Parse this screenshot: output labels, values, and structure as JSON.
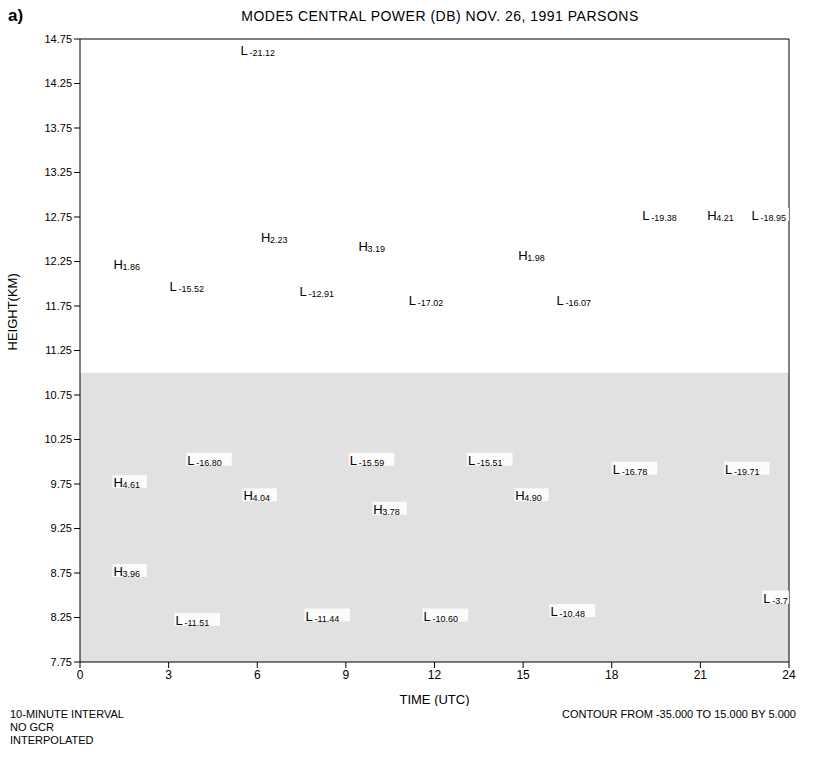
{
  "panel_label": "a)",
  "chart_data": {
    "type": "contour",
    "title": "MODE5 CENTRAL POWER (DB) NOV. 26, 1991 PARSONS",
    "x_label": "TIME (UTC)",
    "y_label": "HEIGHT(KM)",
    "xlim": [
      0,
      24
    ],
    "xticks": [
      0,
      3,
      6,
      9,
      12,
      15,
      18,
      21,
      24
    ],
    "ylim": [
      7.75,
      14.75
    ],
    "yticks": [
      7.75,
      8.25,
      8.75,
      9.25,
      9.75,
      10.25,
      10.75,
      11.25,
      11.75,
      12.25,
      12.75,
      13.25,
      13.75,
      14.25,
      14.75
    ],
    "notes_left": [
      "10-MINUTE INTERVAL",
      "NO GCR",
      "INTERPOLATED"
    ],
    "note_right": "CONTOUR FROM -35.000 TO 15.000 BY 5.000",
    "shaded_band": [
      7.75,
      11.0
    ],
    "color": "#000000",
    "extrema": [
      {
        "x": 5.6,
        "y": 14.6,
        "kind": "L",
        "value": -21.12,
        "label": "-21.12"
      },
      {
        "x": 1.3,
        "y": 12.2,
        "kind": "H",
        "value": 1.86,
        "label": "1.86"
      },
      {
        "x": 3.2,
        "y": 11.95,
        "kind": "L",
        "value": -15.52,
        "label": "-15.52"
      },
      {
        "x": 6.3,
        "y": 12.5,
        "kind": "H",
        "value": 2.23,
        "label": "2.23"
      },
      {
        "x": 7.6,
        "y": 11.9,
        "kind": "L",
        "value": -12.91,
        "label": "-12.91"
      },
      {
        "x": 9.6,
        "y": 12.4,
        "kind": "H",
        "value": 3.19,
        "label": "3.19"
      },
      {
        "x": 11.3,
        "y": 11.8,
        "kind": "L",
        "value": -17.02,
        "label": "-17.02"
      },
      {
        "x": 15.0,
        "y": 12.3,
        "kind": "H",
        "value": 1.98,
        "label": "1.98"
      },
      {
        "x": 16.3,
        "y": 11.8,
        "kind": "L",
        "value": -16.07,
        "label": "-16.07"
      },
      {
        "x": 19.2,
        "y": 12.75,
        "kind": "L",
        "value": -19.38,
        "label": "-19.38"
      },
      {
        "x": 21.4,
        "y": 12.75,
        "kind": "H",
        "value": 4.21,
        "label": "4.21"
      },
      {
        "x": 22.9,
        "y": 12.75,
        "kind": "L",
        "value": -18.95,
        "label": "-18.95"
      },
      {
        "x": 1.3,
        "y": 9.75,
        "kind": "H",
        "value": 4.61,
        "label": "4.61"
      },
      {
        "x": 3.8,
        "y": 10.0,
        "kind": "L",
        "value": -16.8,
        "label": "-16.80"
      },
      {
        "x": 5.7,
        "y": 9.6,
        "kind": "H",
        "value": 4.04,
        "label": "4.04"
      },
      {
        "x": 9.3,
        "y": 10.0,
        "kind": "L",
        "value": -15.59,
        "label": "-15.59"
      },
      {
        "x": 10.1,
        "y": 9.45,
        "kind": "H",
        "value": 3.78,
        "label": "3.78"
      },
      {
        "x": 13.3,
        "y": 10.0,
        "kind": "L",
        "value": -15.51,
        "label": "-15.51"
      },
      {
        "x": 14.9,
        "y": 9.6,
        "kind": "H",
        "value": 4.9,
        "label": "4.90"
      },
      {
        "x": 18.2,
        "y": 9.9,
        "kind": "L",
        "value": -16.78,
        "label": "-16.78"
      },
      {
        "x": 22.0,
        "y": 9.9,
        "kind": "L",
        "value": -19.71,
        "label": "-19.71"
      },
      {
        "x": 1.3,
        "y": 8.75,
        "kind": "H",
        "value": 3.96,
        "label": "3.96"
      },
      {
        "x": 3.4,
        "y": 8.2,
        "kind": "L",
        "value": -11.51,
        "label": "-11.51"
      },
      {
        "x": 7.8,
        "y": 8.25,
        "kind": "L",
        "value": -11.44,
        "label": "-11.44"
      },
      {
        "x": 11.8,
        "y": 8.25,
        "kind": "L",
        "value": -10.6,
        "label": "-10.60"
      },
      {
        "x": 16.1,
        "y": 8.3,
        "kind": "L",
        "value": -10.48,
        "label": "-10.48"
      },
      {
        "x": 23.3,
        "y": 8.45,
        "kind": "L",
        "value": -3.7,
        "label": "-3.7"
      }
    ]
  }
}
